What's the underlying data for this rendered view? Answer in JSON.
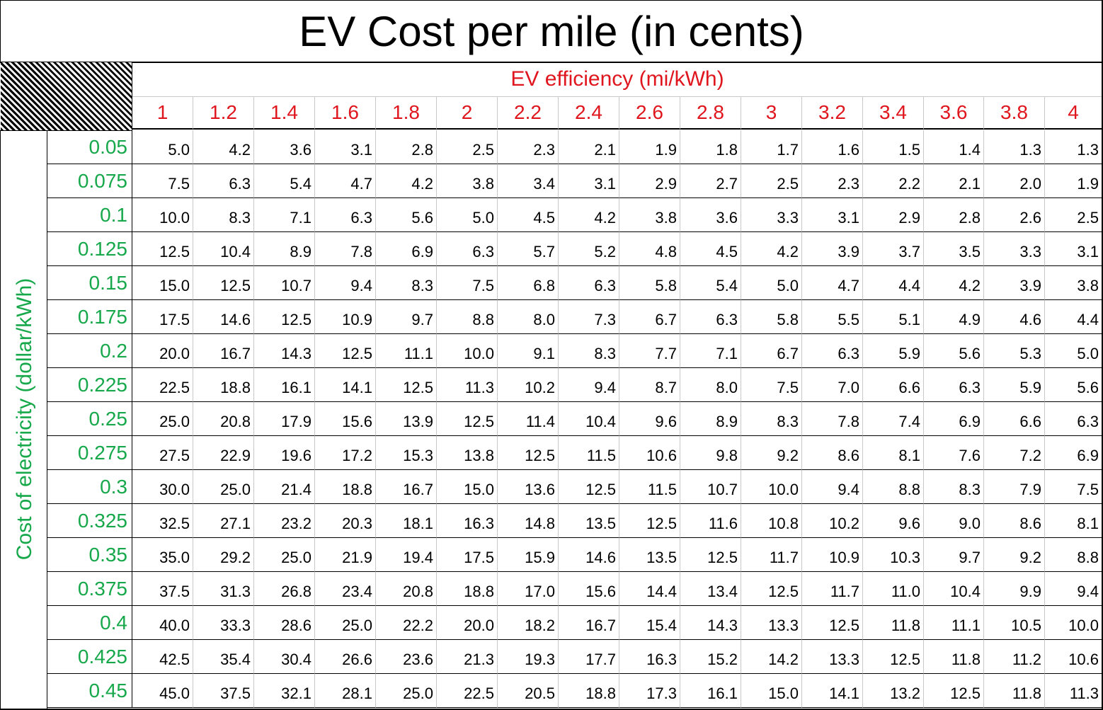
{
  "title": "EV Cost per mile (in cents)",
  "x_label": "EV efficiency (mi/kWh)",
  "y_label": "Cost of electricity (dollar/kWh)",
  "colors": {
    "x_header": "#e0161e",
    "y_header": "#16a84a",
    "text": "#000000"
  },
  "columns": [
    "1",
    "1.2",
    "1.4",
    "1.6",
    "1.8",
    "2",
    "2.2",
    "2.4",
    "2.6",
    "2.8",
    "3",
    "3.2",
    "3.4",
    "3.6",
    "3.8",
    "4"
  ],
  "rows": [
    {
      "label": "0.05",
      "values": [
        "5.0",
        "4.2",
        "3.6",
        "3.1",
        "2.8",
        "2.5",
        "2.3",
        "2.1",
        "1.9",
        "1.8",
        "1.7",
        "1.6",
        "1.5",
        "1.4",
        "1.3",
        "1.3"
      ]
    },
    {
      "label": "0.075",
      "values": [
        "7.5",
        "6.3",
        "5.4",
        "4.7",
        "4.2",
        "3.8",
        "3.4",
        "3.1",
        "2.9",
        "2.7",
        "2.5",
        "2.3",
        "2.2",
        "2.1",
        "2.0",
        "1.9"
      ]
    },
    {
      "label": "0.1",
      "values": [
        "10.0",
        "8.3",
        "7.1",
        "6.3",
        "5.6",
        "5.0",
        "4.5",
        "4.2",
        "3.8",
        "3.6",
        "3.3",
        "3.1",
        "2.9",
        "2.8",
        "2.6",
        "2.5"
      ]
    },
    {
      "label": "0.125",
      "values": [
        "12.5",
        "10.4",
        "8.9",
        "7.8",
        "6.9",
        "6.3",
        "5.7",
        "5.2",
        "4.8",
        "4.5",
        "4.2",
        "3.9",
        "3.7",
        "3.5",
        "3.3",
        "3.1"
      ]
    },
    {
      "label": "0.15",
      "values": [
        "15.0",
        "12.5",
        "10.7",
        "9.4",
        "8.3",
        "7.5",
        "6.8",
        "6.3",
        "5.8",
        "5.4",
        "5.0",
        "4.7",
        "4.4",
        "4.2",
        "3.9",
        "3.8"
      ]
    },
    {
      "label": "0.175",
      "values": [
        "17.5",
        "14.6",
        "12.5",
        "10.9",
        "9.7",
        "8.8",
        "8.0",
        "7.3",
        "6.7",
        "6.3",
        "5.8",
        "5.5",
        "5.1",
        "4.9",
        "4.6",
        "4.4"
      ]
    },
    {
      "label": "0.2",
      "values": [
        "20.0",
        "16.7",
        "14.3",
        "12.5",
        "11.1",
        "10.0",
        "9.1",
        "8.3",
        "7.7",
        "7.1",
        "6.7",
        "6.3",
        "5.9",
        "5.6",
        "5.3",
        "5.0"
      ]
    },
    {
      "label": "0.225",
      "values": [
        "22.5",
        "18.8",
        "16.1",
        "14.1",
        "12.5",
        "11.3",
        "10.2",
        "9.4",
        "8.7",
        "8.0",
        "7.5",
        "7.0",
        "6.6",
        "6.3",
        "5.9",
        "5.6"
      ]
    },
    {
      "label": "0.25",
      "values": [
        "25.0",
        "20.8",
        "17.9",
        "15.6",
        "13.9",
        "12.5",
        "11.4",
        "10.4",
        "9.6",
        "8.9",
        "8.3",
        "7.8",
        "7.4",
        "6.9",
        "6.6",
        "6.3"
      ]
    },
    {
      "label": "0.275",
      "values": [
        "27.5",
        "22.9",
        "19.6",
        "17.2",
        "15.3",
        "13.8",
        "12.5",
        "11.5",
        "10.6",
        "9.8",
        "9.2",
        "8.6",
        "8.1",
        "7.6",
        "7.2",
        "6.9"
      ]
    },
    {
      "label": "0.3",
      "values": [
        "30.0",
        "25.0",
        "21.4",
        "18.8",
        "16.7",
        "15.0",
        "13.6",
        "12.5",
        "11.5",
        "10.7",
        "10.0",
        "9.4",
        "8.8",
        "8.3",
        "7.9",
        "7.5"
      ]
    },
    {
      "label": "0.325",
      "values": [
        "32.5",
        "27.1",
        "23.2",
        "20.3",
        "18.1",
        "16.3",
        "14.8",
        "13.5",
        "12.5",
        "11.6",
        "10.8",
        "10.2",
        "9.6",
        "9.0",
        "8.6",
        "8.1"
      ]
    },
    {
      "label": "0.35",
      "values": [
        "35.0",
        "29.2",
        "25.0",
        "21.9",
        "19.4",
        "17.5",
        "15.9",
        "14.6",
        "13.5",
        "12.5",
        "11.7",
        "10.9",
        "10.3",
        "9.7",
        "9.2",
        "8.8"
      ]
    },
    {
      "label": "0.375",
      "values": [
        "37.5",
        "31.3",
        "26.8",
        "23.4",
        "20.8",
        "18.8",
        "17.0",
        "15.6",
        "14.4",
        "13.4",
        "12.5",
        "11.7",
        "11.0",
        "10.4",
        "9.9",
        "9.4"
      ]
    },
    {
      "label": "0.4",
      "values": [
        "40.0",
        "33.3",
        "28.6",
        "25.0",
        "22.2",
        "20.0",
        "18.2",
        "16.7",
        "15.4",
        "14.3",
        "13.3",
        "12.5",
        "11.8",
        "11.1",
        "10.5",
        "10.0"
      ]
    },
    {
      "label": "0.425",
      "values": [
        "42.5",
        "35.4",
        "30.4",
        "26.6",
        "23.6",
        "21.3",
        "19.3",
        "17.7",
        "16.3",
        "15.2",
        "14.2",
        "13.3",
        "12.5",
        "11.8",
        "11.2",
        "10.6"
      ]
    },
    {
      "label": "0.45",
      "values": [
        "45.0",
        "37.5",
        "32.1",
        "28.1",
        "25.0",
        "22.5",
        "20.5",
        "18.8",
        "17.3",
        "16.1",
        "15.0",
        "14.1",
        "13.2",
        "12.5",
        "11.8",
        "11.3"
      ]
    }
  ]
}
